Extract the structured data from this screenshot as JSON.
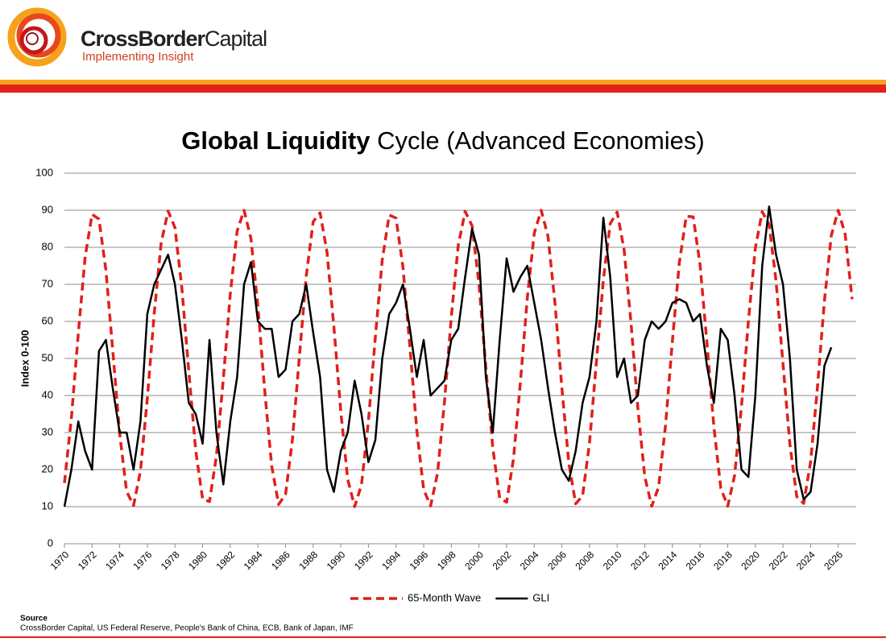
{
  "header": {
    "brand_bold": "CrossBorder",
    "brand_rest": "Capital",
    "tagline": "Implementing Insight"
  },
  "chart_data": {
    "type": "line",
    "title_bold": "Global Liquidity",
    "title_rest": "Cycle (Advanced Economies)",
    "y_label": "Index 0-100",
    "x": [
      1970,
      1970.5,
      1971,
      1971.5,
      1972,
      1972.5,
      1973,
      1973.5,
      1974,
      1974.5,
      1975,
      1975.5,
      1976,
      1976.5,
      1977,
      1977.5,
      1978,
      1978.5,
      1979,
      1979.5,
      1980,
      1980.5,
      1981,
      1981.5,
      1982,
      1982.5,
      1983,
      1983.5,
      1984,
      1984.5,
      1985,
      1985.5,
      1986,
      1986.5,
      1987,
      1987.5,
      1988,
      1988.5,
      1989,
      1989.5,
      1990,
      1990.5,
      1991,
      1991.5,
      1992,
      1992.5,
      1993,
      1993.5,
      1994,
      1994.5,
      1995,
      1995.5,
      1996,
      1996.5,
      1997,
      1997.5,
      1998,
      1998.5,
      1999,
      1999.5,
      2000,
      2000.5,
      2001,
      2001.5,
      2002,
      2002.5,
      2003,
      2003.5,
      2004,
      2004.5,
      2005,
      2005.5,
      2006,
      2006.5,
      2007,
      2007.5,
      2008,
      2008.5,
      2009,
      2009.5,
      2010,
      2010.5,
      2011,
      2011.5,
      2012,
      2012.5,
      2013,
      2013.5,
      2014,
      2014.5,
      2015,
      2015.5,
      2016,
      2016.5,
      2017,
      2017.5,
      2018,
      2018.5,
      2019,
      2019.5,
      2020,
      2020.5,
      2021,
      2021.5,
      2022,
      2022.5,
      2023,
      2023.5,
      2024,
      2024.5,
      2025,
      2025.5,
      2026,
      2026.5,
      2027
    ],
    "series": [
      {
        "name": "65-Month Wave",
        "color": "#e0201b",
        "dashed": true,
        "values": [
          16.4,
          33.9,
          56.7,
          77.4,
          88.9,
          87.6,
          73.8,
          52.1,
          29.7,
          14.1,
          10.3,
          19.7,
          39.2,
          62.2,
          81.2,
          89.8,
          85.3,
          69.0,
          46.5,
          25.1,
          12.0,
          11.4,
          23.7,
          44.6,
          67.4,
          84.4,
          90.0,
          82.3,
          64.0,
          41.0,
          21.0,
          10.6,
          13.3,
          28.2,
          50.2,
          72.2,
          86.9,
          89.3,
          78.7,
          58.6,
          35.7,
          17.4,
          10.0,
          15.9,
          33.0,
          55.8,
          76.6,
          88.7,
          87.9,
          74.6,
          53.1,
          30.6,
          14.6,
          10.2,
          19.0,
          38.2,
          61.2,
          80.5,
          89.7,
          85.8,
          70.0,
          47.6,
          25.9,
          12.3,
          11.2,
          22.9,
          43.6,
          66.4,
          83.8,
          90.0,
          82.9,
          65.0,
          42.0,
          21.8,
          10.8,
          12.9,
          27.2,
          49.2,
          71.3,
          86.4,
          89.5,
          79.4,
          59.7,
          36.6,
          18.1,
          10.1,
          15.3,
          32.0,
          54.7,
          75.8,
          88.4,
          88.2,
          75.4,
          54.2,
          31.6,
          15.0,
          10.1,
          18.4,
          37.1,
          60.2,
          79.8,
          89.6,
          86.2,
          70.9,
          48.6,
          26.8,
          12.7,
          10.9,
          22.1,
          42.5,
          65.4,
          83.2,
          90.0,
          83.5,
          66.0
        ]
      },
      {
        "name": "GLI",
        "color": "#000000",
        "dashed": false,
        "values": [
          10,
          20,
          33,
          25,
          20,
          52,
          55,
          42,
          30,
          30,
          20,
          33,
          62,
          70,
          74,
          78,
          70,
          55,
          38,
          35,
          27,
          55,
          30,
          16,
          33,
          45,
          70,
          76,
          60,
          58,
          58,
          45,
          47,
          60,
          62,
          70,
          57,
          45,
          20,
          14,
          25,
          30,
          44,
          35,
          22,
          28,
          50,
          62,
          65,
          70,
          58,
          45,
          55,
          40,
          42,
          44,
          55,
          58,
          72,
          85,
          78,
          45,
          30,
          55,
          77,
          68,
          72,
          75,
          65,
          55,
          42,
          30,
          20,
          17,
          25,
          38,
          45,
          60,
          88,
          72,
          45,
          50,
          38,
          40,
          55,
          60,
          58,
          60,
          65,
          66,
          65,
          60,
          62,
          48,
          38,
          58,
          55,
          40,
          20,
          18,
          40,
          75,
          91,
          78,
          70,
          50,
          20,
          12,
          14,
          27,
          48,
          53,
          null,
          null,
          null
        ]
      }
    ],
    "xlim": [
      1970,
      2027.3
    ],
    "xticks": [
      1970,
      1972,
      1974,
      1976,
      1978,
      1980,
      1982,
      1984,
      1986,
      1988,
      1990,
      1992,
      1994,
      1996,
      1998,
      2000,
      2002,
      2004,
      2006,
      2008,
      2010,
      2012,
      2014,
      2016,
      2018,
      2020,
      2022,
      2024,
      2026
    ],
    "ylim": [
      0,
      100
    ],
    "yticks": [
      0,
      10,
      20,
      30,
      40,
      50,
      60,
      70,
      80,
      90,
      100
    ],
    "grid": true,
    "legend": "bottom"
  },
  "source": {
    "heading": "Source",
    "text": "CrossBorder Capital, US Federal Reserve, People's Bank of China, ECB, Bank of Japan, IMF"
  }
}
